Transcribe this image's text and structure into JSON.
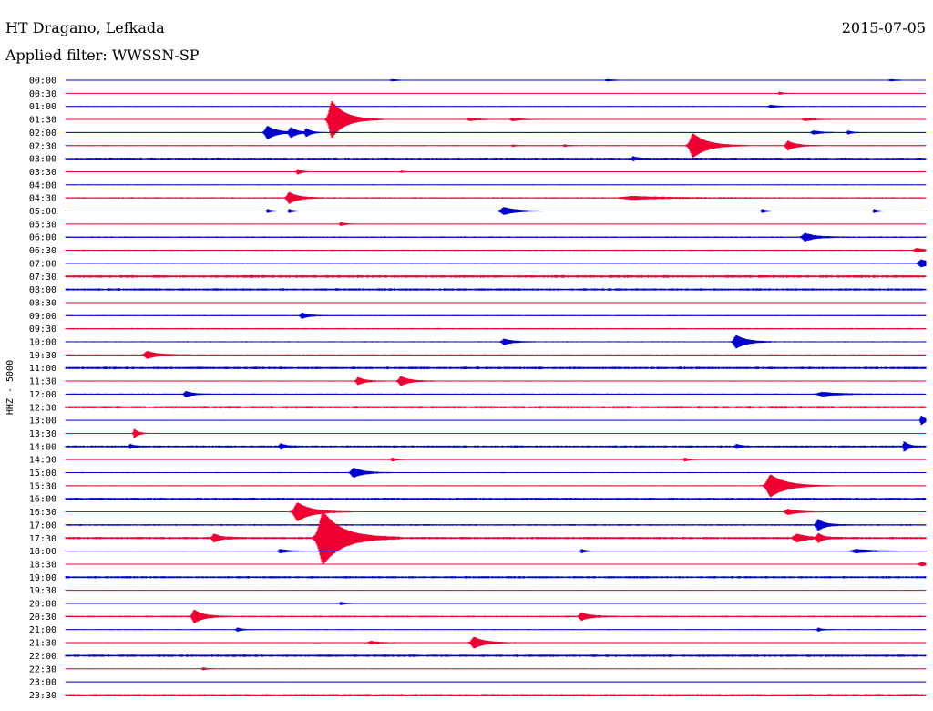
{
  "header": {
    "station": "HT Dragano, Lefkada",
    "date": "2015-07-05",
    "filter_label": "Applied filter: WWSSN-SP"
  },
  "chart_data": {
    "type": "line",
    "title": "HT Dragano, Lefkada",
    "subtitle": "Applied filter: WWSSN-SP",
    "date": "2015-07-05",
    "ylabel": "HHZ - 5000",
    "grid": false,
    "colors": [
      "#0000cc",
      "#ee0033"
    ],
    "rows": [
      {
        "label": "00:00",
        "noise": 0.3,
        "events": [
          {
            "t": 0.38,
            "a": 1,
            "w": 0.01
          },
          {
            "t": 0.63,
            "a": 1,
            "w": 0.01
          },
          {
            "t": 0.96,
            "a": 1,
            "w": 0.01
          }
        ]
      },
      {
        "label": "00:30",
        "noise": 0.3,
        "events": [
          {
            "t": 0.83,
            "a": 1.5,
            "w": 0.005
          }
        ]
      },
      {
        "label": "01:00",
        "noise": 0.4,
        "events": [
          {
            "t": 0.82,
            "a": 1.5,
            "w": 0.01
          }
        ]
      },
      {
        "label": "01:30",
        "noise": 0.5,
        "events": [
          {
            "t": 0.31,
            "a": 20,
            "w": 0.015
          },
          {
            "t": 0.47,
            "a": 1.5,
            "w": 0.01
          },
          {
            "t": 0.52,
            "a": 1.5,
            "w": 0.01
          },
          {
            "t": 0.86,
            "a": 1.5,
            "w": 0.01
          }
        ]
      },
      {
        "label": "02:00",
        "noise": 0.4,
        "events": [
          {
            "t": 0.235,
            "a": 7,
            "w": 0.012
          },
          {
            "t": 0.262,
            "a": 5,
            "w": 0.008
          },
          {
            "t": 0.28,
            "a": 4,
            "w": 0.006
          },
          {
            "t": 0.87,
            "a": 2,
            "w": 0.01
          },
          {
            "t": 0.91,
            "a": 2,
            "w": 0.005
          }
        ]
      },
      {
        "label": "02:30",
        "noise": 0.5,
        "events": [
          {
            "t": 0.73,
            "a": 13,
            "w": 0.016
          },
          {
            "t": 0.84,
            "a": 5,
            "w": 0.01
          },
          {
            "t": 0.52,
            "a": 1,
            "w": 0.005
          },
          {
            "t": 0.58,
            "a": 1,
            "w": 0.005
          }
        ]
      },
      {
        "label": "03:00",
        "noise": 1.2,
        "events": [
          {
            "t": 0.66,
            "a": 2,
            "w": 0.005
          }
        ]
      },
      {
        "label": "03:30",
        "noise": 0.4,
        "events": [
          {
            "t": 0.27,
            "a": 3,
            "w": 0.005
          },
          {
            "t": 0.39,
            "a": 1,
            "w": 0.005
          }
        ]
      },
      {
        "label": "04:00",
        "noise": 0.4,
        "events": []
      },
      {
        "label": "04:30",
        "noise": 0.8,
        "events": [
          {
            "t": 0.26,
            "a": 6,
            "w": 0.01
          },
          {
            "t": 0.66,
            "a": 1.5,
            "w": 0.04
          }
        ]
      },
      {
        "label": "05:00",
        "noise": 0.4,
        "events": [
          {
            "t": 0.51,
            "a": 4,
            "w": 0.015
          },
          {
            "t": 0.235,
            "a": 2,
            "w": 0.005
          },
          {
            "t": 0.26,
            "a": 2,
            "w": 0.005
          },
          {
            "t": 0.81,
            "a": 2,
            "w": 0.005
          },
          {
            "t": 0.94,
            "a": 2,
            "w": 0.005
          }
        ]
      },
      {
        "label": "05:30",
        "noise": 0.4,
        "events": [
          {
            "t": 0.32,
            "a": 2,
            "w": 0.005
          }
        ]
      },
      {
        "label": "06:00",
        "noise": 0.8,
        "events": [
          {
            "t": 0.86,
            "a": 4,
            "w": 0.012
          }
        ]
      },
      {
        "label": "06:30",
        "noise": 0.7,
        "events": [
          {
            "t": 0.99,
            "a": 2,
            "w": 0.01
          }
        ]
      },
      {
        "label": "07:00",
        "noise": 0.5,
        "events": [
          {
            "t": 0.995,
            "a": 4,
            "w": 0.012
          }
        ]
      },
      {
        "label": "07:30",
        "noise": 1.5,
        "events": []
      },
      {
        "label": "08:00",
        "noise": 1.3,
        "events": []
      },
      {
        "label": "08:30",
        "noise": 0.4,
        "events": []
      },
      {
        "label": "09:00",
        "noise": 0.6,
        "events": [
          {
            "t": 0.275,
            "a": 3,
            "w": 0.008
          }
        ]
      },
      {
        "label": "09:30",
        "noise": 0.8,
        "events": []
      },
      {
        "label": "10:00",
        "noise": 0.6,
        "events": [
          {
            "t": 0.51,
            "a": 3,
            "w": 0.01
          },
          {
            "t": 0.78,
            "a": 7,
            "w": 0.012
          }
        ]
      },
      {
        "label": "10:30",
        "noise": 0.6,
        "events": [
          {
            "t": 0.095,
            "a": 4,
            "w": 0.012
          }
        ]
      },
      {
        "label": "11:00",
        "noise": 1.4,
        "events": []
      },
      {
        "label": "11:30",
        "noise": 0.6,
        "events": [
          {
            "t": 0.34,
            "a": 4,
            "w": 0.008
          },
          {
            "t": 0.39,
            "a": 5,
            "w": 0.01
          }
        ]
      },
      {
        "label": "12:00",
        "noise": 0.6,
        "events": [
          {
            "t": 0.14,
            "a": 3,
            "w": 0.008
          },
          {
            "t": 0.88,
            "a": 2,
            "w": 0.02
          }
        ]
      },
      {
        "label": "12:30",
        "noise": 1.5,
        "events": []
      },
      {
        "label": "13:00",
        "noise": 0.4,
        "events": [
          {
            "t": 0.995,
            "a": 5,
            "w": 0.005
          }
        ]
      },
      {
        "label": "13:30",
        "noise": 0.4,
        "events": [
          {
            "t": 0.08,
            "a": 5,
            "w": 0.005
          }
        ]
      },
      {
        "label": "14:00",
        "noise": 1.2,
        "events": [
          {
            "t": 0.075,
            "a": 2,
            "w": 0.005
          },
          {
            "t": 0.25,
            "a": 3,
            "w": 0.005
          },
          {
            "t": 0.78,
            "a": 2,
            "w": 0.005
          },
          {
            "t": 0.975,
            "a": 5,
            "w": 0.005
          }
        ]
      },
      {
        "label": "14:30",
        "noise": 0.4,
        "events": [
          {
            "t": 0.38,
            "a": 2,
            "w": 0.005
          },
          {
            "t": 0.72,
            "a": 2,
            "w": 0.005
          }
        ]
      },
      {
        "label": "15:00",
        "noise": 0.6,
        "events": [
          {
            "t": 0.335,
            "a": 5,
            "w": 0.012
          }
        ]
      },
      {
        "label": "15:30",
        "noise": 0.5,
        "events": [
          {
            "t": 0.82,
            "a": 12,
            "w": 0.018
          }
        ]
      },
      {
        "label": "16:00",
        "noise": 1.3,
        "events": []
      },
      {
        "label": "16:30",
        "noise": 0.5,
        "events": [
          {
            "t": 0.27,
            "a": 10,
            "w": 0.016
          },
          {
            "t": 0.84,
            "a": 3,
            "w": 0.012
          }
        ]
      },
      {
        "label": "17:00",
        "noise": 0.9,
        "events": [
          {
            "t": 0.875,
            "a": 6,
            "w": 0.008
          }
        ]
      },
      {
        "label": "17:30",
        "noise": 1.3,
        "events": [
          {
            "t": 0.3,
            "a": 28,
            "w": 0.022
          },
          {
            "t": 0.173,
            "a": 4,
            "w": 0.008
          },
          {
            "t": 0.85,
            "a": 4,
            "w": 0.012
          },
          {
            "t": 0.875,
            "a": 4,
            "w": 0.006
          }
        ]
      },
      {
        "label": "18:00",
        "noise": 0.5,
        "events": [
          {
            "t": 0.25,
            "a": 2,
            "w": 0.01
          },
          {
            "t": 0.6,
            "a": 2,
            "w": 0.005
          },
          {
            "t": 0.92,
            "a": 2,
            "w": 0.02
          }
        ]
      },
      {
        "label": "18:30",
        "noise": 0.4,
        "events": [
          {
            "t": 0.995,
            "a": 2,
            "w": 0.01
          }
        ]
      },
      {
        "label": "19:00",
        "noise": 1.3,
        "events": []
      },
      {
        "label": "19:30",
        "noise": 0.4,
        "events": []
      },
      {
        "label": "20:00",
        "noise": 0.5,
        "events": [
          {
            "t": 0.32,
            "a": 1.5,
            "w": 0.005
          }
        ]
      },
      {
        "label": "20:30",
        "noise": 0.9,
        "events": [
          {
            "t": 0.15,
            "a": 7,
            "w": 0.01
          },
          {
            "t": 0.6,
            "a": 4,
            "w": 0.01
          }
        ]
      },
      {
        "label": "21:00",
        "noise": 0.4,
        "events": [
          {
            "t": 0.2,
            "a": 2,
            "w": 0.006
          },
          {
            "t": 0.875,
            "a": 2,
            "w": 0.005
          }
        ]
      },
      {
        "label": "21:30",
        "noise": 0.6,
        "events": [
          {
            "t": 0.475,
            "a": 6,
            "w": 0.012
          },
          {
            "t": 0.355,
            "a": 1.5,
            "w": 0.01
          }
        ]
      },
      {
        "label": "22:00",
        "noise": 1.3,
        "events": []
      },
      {
        "label": "22:30",
        "noise": 0.4,
        "events": [
          {
            "t": 0.16,
            "a": 1.5,
            "w": 0.005
          }
        ]
      },
      {
        "label": "23:00",
        "noise": 0.4,
        "events": []
      },
      {
        "label": "23:30",
        "noise": 1.1,
        "events": []
      }
    ]
  }
}
